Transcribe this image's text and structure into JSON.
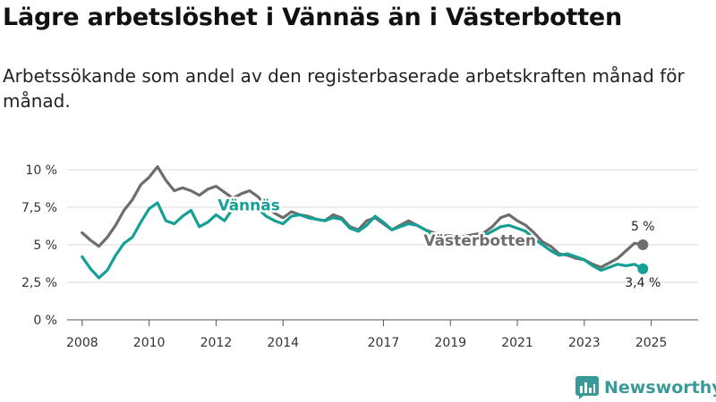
{
  "title": "Lägre arbetslöshet i Vännäs än i Västerbotten",
  "subtitle": "Arbetssökande som andel av den registerbaserade arbetskraften månad för månad.",
  "brand": {
    "name": "Newsworthy",
    "color": "#3a9a98"
  },
  "chart_data": {
    "type": "line",
    "x_start": 2008.0,
    "x_step": 0.25,
    "xlim": [
      2007.55,
      2026.4
    ],
    "ylim": [
      0,
      10
    ],
    "yticks": [
      0,
      2.5,
      5,
      7.5,
      10
    ],
    "ytick_labels": [
      "0 %",
      "2,5 %",
      "5 %",
      "7,5 %",
      "10 %"
    ],
    "xticks": [
      2008,
      2010,
      2012,
      2014,
      2017,
      2019,
      2021,
      2023,
      2025
    ],
    "xtick_labels": [
      "2008",
      "2010",
      "2012",
      "2014",
      "2017",
      "2019",
      "2021",
      "2023",
      "2025"
    ],
    "grid": true,
    "series": [
      {
        "name": "Västerbotten",
        "color": "#6d6d6d",
        "values": [
          5.8,
          5.3,
          4.9,
          5.5,
          6.3,
          7.3,
          8.0,
          9.0,
          9.5,
          10.2,
          9.3,
          8.6,
          8.8,
          8.6,
          8.3,
          8.7,
          8.9,
          8.5,
          8.1,
          8.4,
          8.6,
          8.2,
          7.6,
          7.1,
          6.8,
          7.2,
          7.0,
          6.9,
          6.7,
          6.6,
          7.0,
          6.8,
          6.2,
          6.0,
          6.6,
          6.8,
          6.4,
          6.0,
          6.3,
          6.6,
          6.3,
          6.0,
          5.8,
          5.6,
          5.6,
          5.5,
          5.6,
          5.7,
          5.8,
          6.2,
          6.8,
          7.0,
          6.6,
          6.3,
          5.8,
          5.2,
          4.9,
          4.4,
          4.3,
          4.1,
          4.0,
          3.7,
          3.5,
          3.8,
          4.1,
          4.6,
          5.1,
          5.0
        ],
        "end_label": "5 %"
      },
      {
        "name": "Vännäs",
        "color": "#14a095",
        "values": [
          4.2,
          3.4,
          2.8,
          3.3,
          4.3,
          5.1,
          5.5,
          6.5,
          7.4,
          7.8,
          6.6,
          6.4,
          6.9,
          7.3,
          6.2,
          6.5,
          7.0,
          6.6,
          7.4,
          7.8,
          7.6,
          7.4,
          6.9,
          6.6,
          6.4,
          6.9,
          7.0,
          6.8,
          6.7,
          6.6,
          6.8,
          6.7,
          6.1,
          5.9,
          6.3,
          6.9,
          6.5,
          6.0,
          6.2,
          6.4,
          6.3,
          6.0,
          5.6,
          5.3,
          5.2,
          5.0,
          5.1,
          5.3,
          5.6,
          5.9,
          6.2,
          6.3,
          6.1,
          5.9,
          5.4,
          5.0,
          4.6,
          4.3,
          4.4,
          4.2,
          4.0,
          3.6,
          3.3,
          3.5,
          3.7,
          3.6,
          3.7,
          3.4
        ],
        "end_label": "3,4 %"
      }
    ]
  }
}
